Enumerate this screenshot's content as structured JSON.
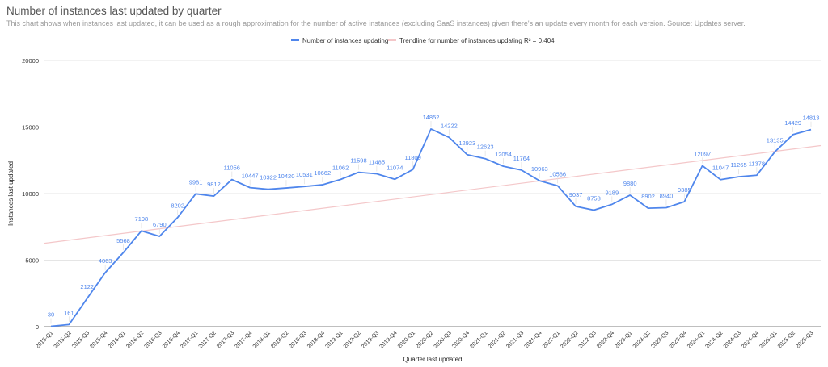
{
  "chart_data": {
    "type": "line",
    "title": "Number of instances last updated by quarter",
    "subtitle": "This chart shows when instances last updated, it can be used as a rough approximation for the number of active instances (excluding SaaS instances) given there's an update every month for each version. Source: Updates server.",
    "xlabel": "Quarter last updated",
    "ylabel": "Instances last updated",
    "ylim": [
      0,
      20000
    ],
    "yticks": [
      0,
      5000,
      10000,
      15000,
      20000
    ],
    "grid": true,
    "legend_position": "top",
    "categories": [
      "2015-Q1",
      "2015-Q2",
      "2015-Q3",
      "2015-Q4",
      "2016-Q1",
      "2016-Q2",
      "2016-Q3",
      "2016-Q4",
      "2017-Q1",
      "2017-Q2",
      "2017-Q3",
      "2017-Q4",
      "2018-Q1",
      "2018-Q2",
      "2018-Q3",
      "2018-Q4",
      "2019-Q1",
      "2019-Q2",
      "2019-Q3",
      "2019-Q4",
      "2020-Q1",
      "2020-Q2",
      "2020-Q3",
      "2020-Q4",
      "2021-Q1",
      "2021-Q2",
      "2021-Q3",
      "2021-Q4",
      "2022-Q1",
      "2022-Q2",
      "2022-Q3",
      "2022-Q4",
      "2023-Q1",
      "2023-Q2",
      "2023-Q3",
      "2023-Q4",
      "2024-Q1",
      "2024-Q2",
      "2024-Q3",
      "2024-Q4",
      "2025-Q1",
      "2025-Q2",
      "2025-Q3"
    ],
    "series": [
      {
        "name": "Number of instances updating",
        "color": "#4f86ec",
        "values": [
          30,
          161,
          2122,
          4063,
          5568,
          7198,
          6790,
          8202,
          9981,
          9812,
          11056,
          10447,
          10322,
          10420,
          10531,
          10662,
          11062,
          11598,
          11485,
          11074,
          11809,
          14852,
          14222,
          12923,
          12623,
          12054,
          11764,
          10963,
          10586,
          9037,
          8758,
          9189,
          9880,
          8902,
          8940,
          9385,
          12097,
          11047,
          11265,
          11378,
          13135,
          14429,
          14813
        ]
      }
    ],
    "trendline": {
      "name": "Trendline for number of instances updating R² = 0.404",
      "type": "linear",
      "r_squared": 0.404,
      "color": "#f4c7c9"
    }
  }
}
